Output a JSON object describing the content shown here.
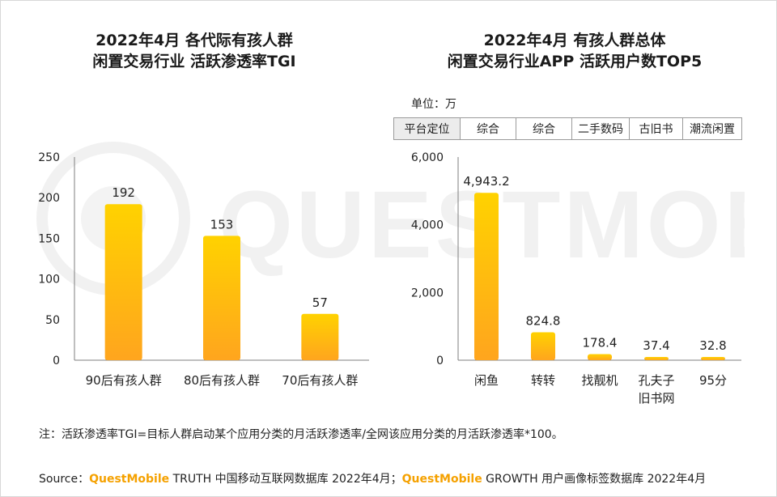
{
  "left_title": [
    "2022年4月 各代际有孩人群",
    "闲置交易行业 活跃渗透率TGI"
  ],
  "right_title": [
    "2022年4月 有孩人群总体",
    "闲置交易行业APP 活跃用户数TOP5"
  ],
  "unit": "单位：万",
  "platform_table": {
    "header": "平台定位",
    "cells": [
      "综合",
      "综合",
      "二手数码",
      "古旧书",
      "潮流闲置"
    ]
  },
  "watermark": "QUESTMOBILE",
  "note": "注：活跃渗透率TGI=目标人群启动某个应用分类的月活跃渗透率/全网该应用分类的月活跃渗透率*100。",
  "source": {
    "prefix": "Source：",
    "brand1": "QuestMobile",
    "text1": " TRUTH 中国移动互联网数据库 2022年4月；",
    "brand2": "QuestMobile",
    "text2": " GROWTH 用户画像标签数据库 2022年4月"
  },
  "colors": {
    "bar_top": "#ffd200",
    "bar_bottom": "#ffa51e",
    "brand": "#f5a100",
    "axis": "#7f7f7f"
  },
  "chart_data": [
    {
      "type": "bar",
      "title": "2022年4月 各代际有孩人群 闲置交易行业 活跃渗透率TGI",
      "categories": [
        [
          "90后有孩人群"
        ],
        [
          "80后有孩人群"
        ],
        [
          "70后有孩人群"
        ]
      ],
      "values": [
        192,
        153,
        57
      ],
      "data_labels": [
        "192",
        "153",
        "57"
      ],
      "ylim": [
        0,
        250
      ],
      "yticks": [
        0,
        50,
        100,
        150,
        200,
        250
      ],
      "ytick_labels": [
        "0",
        "50",
        "100",
        "150",
        "200",
        "250"
      ],
      "xlabel": "",
      "ylabel": "",
      "grid": false
    },
    {
      "type": "bar",
      "title": "2022年4月 有孩人群总体 闲置交易行业APP 活跃用户数TOP5",
      "categories": [
        [
          "闲鱼"
        ],
        [
          "转转"
        ],
        [
          "找靓机"
        ],
        [
          "孔夫子",
          "旧书网"
        ],
        [
          "95分"
        ]
      ],
      "values": [
        4943.2,
        824.8,
        178.4,
        37.4,
        32.8
      ],
      "data_labels": [
        "4,943.2",
        "824.8",
        "178.4",
        "37.4",
        "32.8"
      ],
      "ylim": [
        0,
        6000
      ],
      "yticks": [
        0,
        2000,
        4000,
        6000
      ],
      "ytick_labels": [
        "0",
        "2,000",
        "4,000",
        "6,000"
      ],
      "xlabel": "",
      "ylabel": "单位：万",
      "grid": false
    }
  ]
}
